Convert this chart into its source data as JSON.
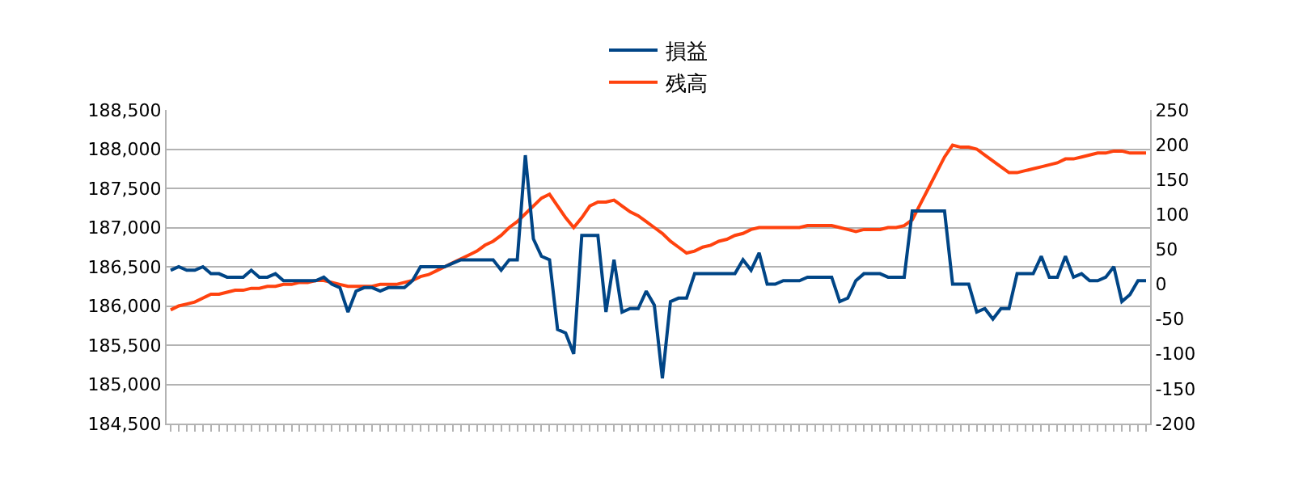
{
  "chart_data": {
    "type": "line",
    "categories": [
      null,
      null,
      null,
      null,
      null,
      null,
      null,
      null,
      null,
      null,
      null,
      null,
      null,
      null,
      null,
      null,
      null,
      null,
      null,
      null,
      null,
      null,
      null,
      null,
      null,
      null,
      null,
      null,
      null,
      null,
      null,
      null,
      null,
      null,
      null,
      null,
      null,
      null,
      null,
      null,
      null,
      null,
      null,
      null,
      null,
      null,
      null,
      null,
      null,
      null,
      null,
      null,
      null,
      null,
      null,
      null,
      null,
      null,
      null,
      null,
      null,
      null,
      null,
      null,
      null,
      null,
      null,
      null,
      null,
      null,
      null,
      null,
      null,
      null,
      null,
      null,
      null,
      null,
      null,
      null,
      null,
      null,
      null,
      null,
      null,
      null,
      null,
      null,
      null,
      null,
      null,
      null,
      null,
      null,
      null,
      null,
      null,
      null,
      null,
      null,
      null,
      null,
      null,
      null,
      null,
      null,
      null,
      null,
      null,
      null,
      null,
      null,
      null,
      null,
      null,
      null,
      null,
      null,
      null,
      null,
      null,
      null
    ],
    "series": [
      {
        "name": "損益",
        "color": "#004586",
        "axis": "y2",
        "values": [
          20,
          25,
          20,
          20,
          25,
          15,
          15,
          10,
          10,
          10,
          20,
          10,
          10,
          15,
          5,
          5,
          5,
          5,
          5,
          10,
          0,
          -5,
          -40,
          -10,
          -5,
          -5,
          -10,
          -5,
          -5,
          -5,
          5,
          25,
          25,
          25,
          25,
          30,
          35,
          35,
          35,
          35,
          35,
          20,
          35,
          35,
          185,
          65,
          40,
          35,
          -65,
          -70,
          -100,
          70,
          70,
          70,
          -40,
          35,
          -40,
          -35,
          -35,
          -10,
          -30,
          -135,
          -25,
          -20,
          -20,
          15,
          15,
          15,
          15,
          15,
          15,
          35,
          20,
          45,
          0,
          0,
          5,
          5,
          5,
          10,
          10,
          10,
          10,
          -25,
          -20,
          5,
          15,
          15,
          15,
          10,
          10,
          10,
          105,
          105,
          105,
          105,
          105,
          0,
          0,
          0,
          -40,
          -35,
          -50,
          -35,
          -35,
          15,
          15,
          15,
          40,
          10,
          10,
          40,
          10,
          15,
          5,
          5,
          10,
          25,
          -25,
          -15,
          5,
          5
        ]
      },
      {
        "name": "残高",
        "color": "#ff420e",
        "values": [
          185950,
          186000,
          186025,
          186050,
          186100,
          186150,
          186150,
          186175,
          186200,
          186200,
          186225,
          186225,
          186250,
          186250,
          186275,
          186275,
          186300,
          186300,
          186325,
          186325,
          186300,
          186275,
          186250,
          186250,
          186250,
          186250,
          186275,
          186275,
          186275,
          186300,
          186325,
          186375,
          186400,
          186450,
          186500,
          186550,
          186600,
          186650,
          186700,
          186775,
          186825,
          186900,
          187000,
          187075,
          187175,
          187275,
          187375,
          187425,
          187275,
          187125,
          187000,
          187125,
          187275,
          187325,
          187325,
          187350,
          187275,
          187200,
          187150,
          187075,
          187000,
          186925,
          186825,
          186750,
          186675,
          186700,
          186750,
          186775,
          186825,
          186850,
          186900,
          186925,
          186975,
          187000,
          187000,
          187000,
          187000,
          187000,
          187000,
          187025,
          187025,
          187025,
          187025,
          187000,
          186975,
          186950,
          186975,
          186975,
          186975,
          187000,
          187000,
          187025,
          187100,
          187300,
          187500,
          187700,
          187900,
          188050,
          188025,
          188025,
          188000,
          187925,
          187850,
          187775,
          187700,
          187700,
          187725,
          187750,
          187775,
          187800,
          187825,
          187875,
          187875,
          187900,
          187925,
          187950,
          187950,
          187975,
          187975,
          187950,
          187950,
          187950
        ]
      }
    ],
    "ylim": [
      184500,
      188500
    ],
    "yticks": [
      {
        "value": 184500,
        "label": "184,500"
      },
      {
        "value": 185000,
        "label": "185,000"
      },
      {
        "value": 185500,
        "label": "185,500"
      },
      {
        "value": 186000,
        "label": "186,000"
      },
      {
        "value": 186500,
        "label": "186,500"
      },
      {
        "value": 187000,
        "label": "187,000"
      },
      {
        "value": 187500,
        "label": "187,500"
      },
      {
        "value": 188000,
        "label": "188,000"
      },
      {
        "value": 188500,
        "label": "188,500"
      }
    ],
    "y2lim": [
      -200,
      250
    ],
    "y2ticks": [
      -200,
      -150,
      -100,
      -50,
      0,
      50,
      100,
      150,
      200,
      250
    ],
    "grid": "y",
    "legend": "top",
    "tick_labels": "y",
    "marker": "none",
    "line_style": "solid"
  }
}
